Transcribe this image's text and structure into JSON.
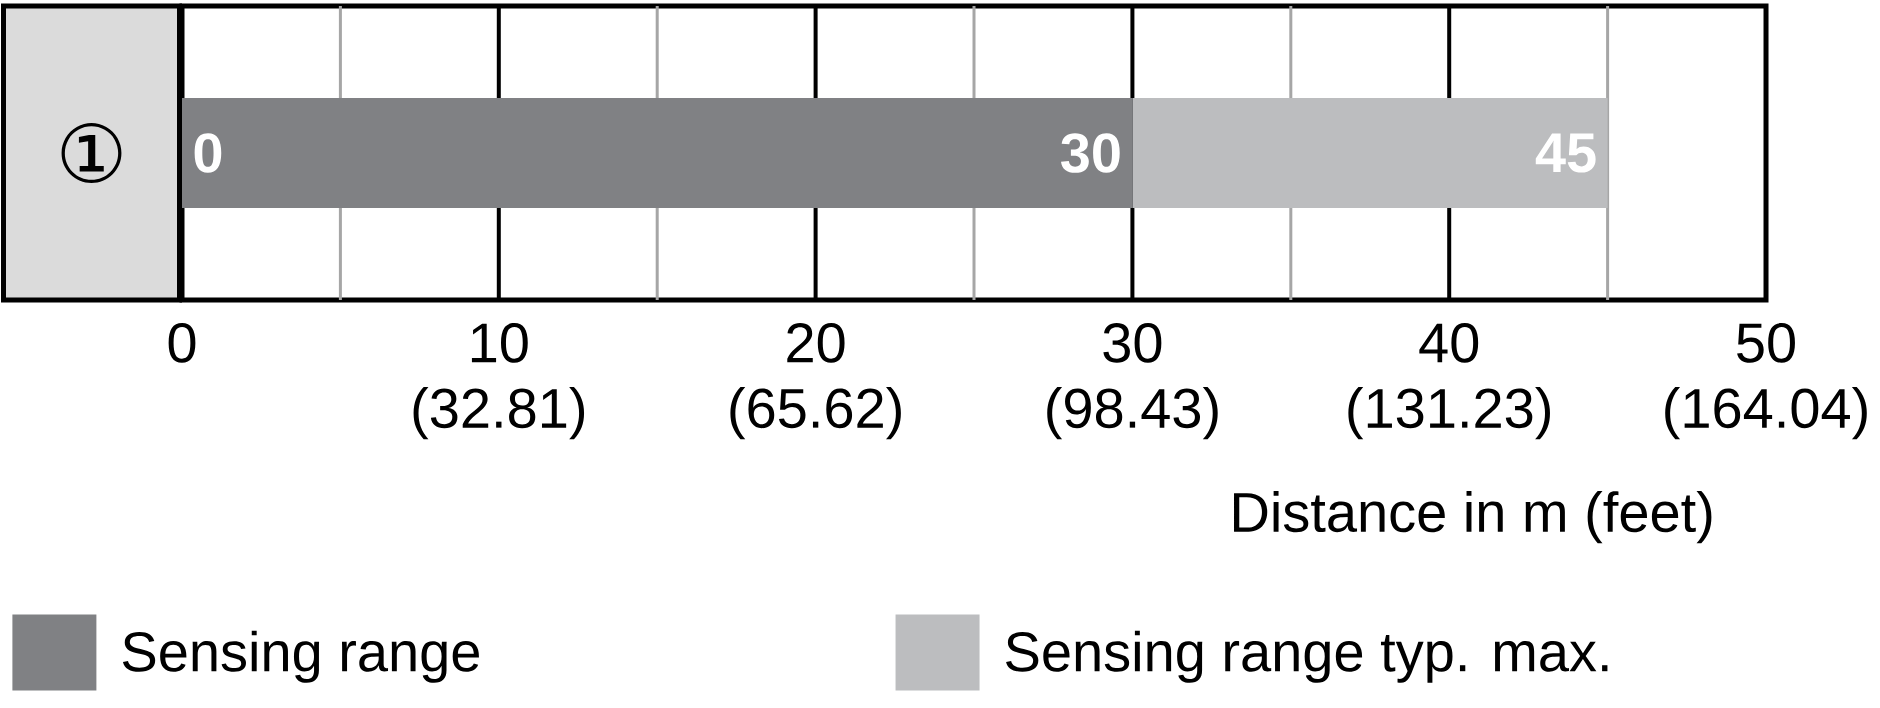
{
  "chart_data": {
    "type": "bar",
    "orientation": "horizontal",
    "stacked": true,
    "categories": [
      "①"
    ],
    "series": [
      {
        "name": "Sensing range",
        "color": "#808184",
        "values": [
          30
        ]
      },
      {
        "name": "Sensing range typ. max.",
        "color": "#bcbdbf",
        "values": [
          15
        ]
      }
    ],
    "xlabel": "Distance in m (feet)",
    "xlim": [
      0,
      50
    ],
    "xticks": [
      0,
      {
        "value": 5,
        "label": null
      },
      10,
      {
        "value": 15,
        "label": null
      },
      20,
      {
        "value": 25,
        "label": null
      },
      30,
      {
        "value": 35,
        "label": null
      },
      40,
      {
        "value": 45,
        "label": null
      },
      50
    ],
    "x2lim": [
      0,
      164.04
    ],
    "x2ticks": [
      {
        "value": 32.81,
        "label": "(32.81)"
      },
      {
        "value": 65.62,
        "label": "(65.62)"
      },
      {
        "value": 98.43,
        "label": "(98.43)"
      },
      {
        "value": 131.23,
        "label": "(131.23)"
      },
      {
        "value": 164.04,
        "label": "(164.04)"
      }
    ],
    "grid": "x",
    "legend": "bottom left",
    "annotations": [
      {
        "text": "0",
        "x": 0,
        "y": "①"
      },
      {
        "text": "30",
        "x": 30,
        "y": "①"
      },
      {
        "text": "45",
        "x": 45,
        "y": "①"
      }
    ]
  }
}
